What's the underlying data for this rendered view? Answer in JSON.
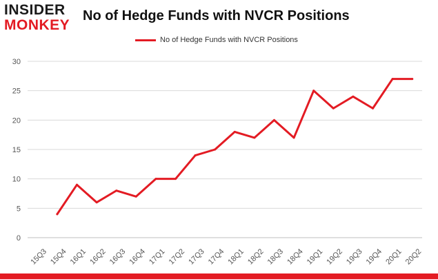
{
  "logo": {
    "line1": "INSIDER",
    "line2": "MONKEY"
  },
  "title": "No of Hedge Funds with NVCR Positions",
  "colors": {
    "series": "#e31b23",
    "grid": "#d9d9d9",
    "axis_text": "#555555",
    "accent": "#e31b23"
  },
  "chart_data": {
    "type": "line",
    "title": "No of Hedge Funds with NVCR Positions",
    "xlabel": "",
    "ylabel": "",
    "categories": [
      "15Q3",
      "15Q4",
      "16Q1",
      "16Q2",
      "16Q3",
      "16Q4",
      "17Q1",
      "17Q2",
      "17Q3",
      "17Q4",
      "18Q1",
      "18Q2",
      "18Q3",
      "18Q4",
      "19Q1",
      "19Q2",
      "19Q3",
      "19Q4",
      "20Q1",
      "20Q2"
    ],
    "series": [
      {
        "name": "No of Hedge Funds with NVCR Positions",
        "values": [
          null,
          4,
          9,
          6,
          8,
          7,
          10,
          10,
          14,
          15,
          18,
          17,
          20,
          17,
          25,
          22,
          24,
          22,
          27,
          27
        ]
      }
    ],
    "ylim": [
      0,
      30
    ],
    "yticks": [
      0,
      5,
      10,
      15,
      20,
      25,
      30
    ],
    "grid": true,
    "legend": "top-center"
  }
}
